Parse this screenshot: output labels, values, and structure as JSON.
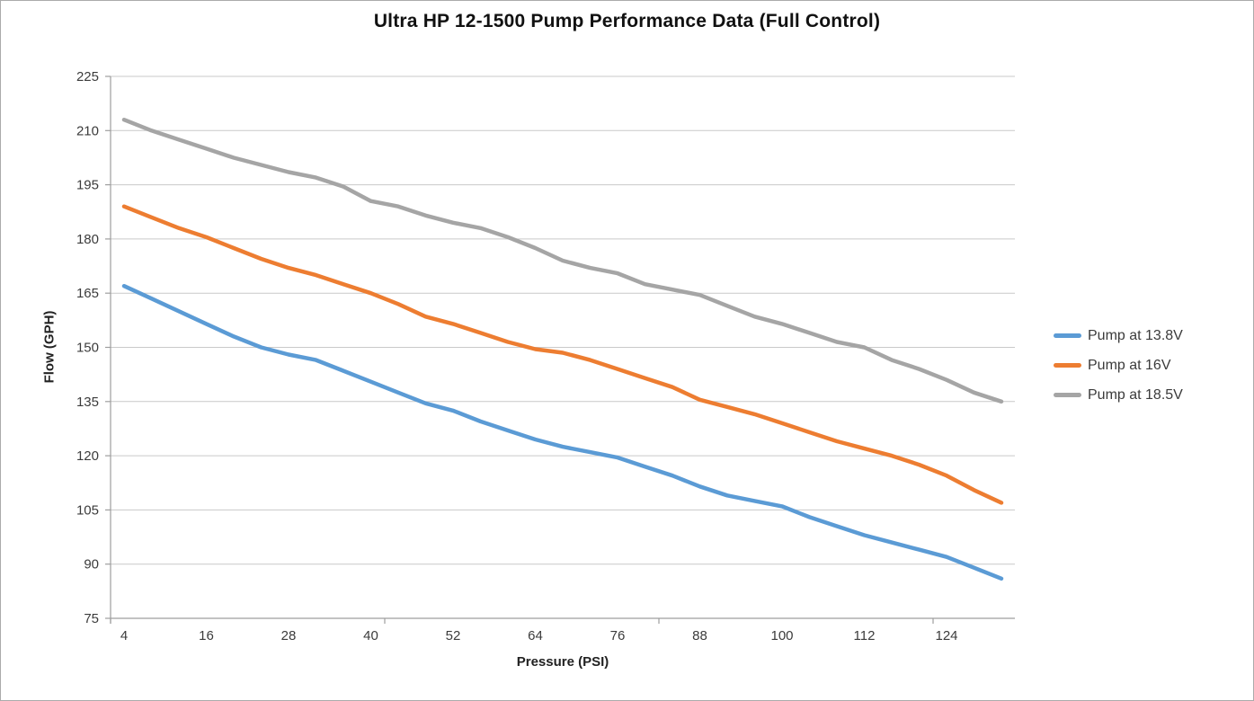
{
  "window": {
    "background": "#FFFFFF",
    "border_color": "#ABABAB"
  },
  "chart_data": {
    "type": "line",
    "title": "Ultra HP 12-1500 Pump Performance Data (Full Control)",
    "xlabel": "Pressure (PSI)",
    "ylabel": "Flow (GPH)",
    "x": [
      4,
      8,
      12,
      16,
      20,
      24,
      28,
      32,
      36,
      40,
      44,
      48,
      52,
      56,
      60,
      64,
      68,
      72,
      76,
      80,
      84,
      88,
      92,
      96,
      100,
      104,
      108,
      112,
      116,
      120,
      124,
      128,
      132
    ],
    "x_tick_labels": [
      "4",
      "16",
      "28",
      "40",
      "52",
      "64",
      "76",
      "88",
      "100",
      "112",
      "124"
    ],
    "y_ticks": [
      "225",
      "210",
      "195",
      "180",
      "165",
      "150",
      "135",
      "120",
      "105",
      "90",
      "75"
    ],
    "ylim": [
      75,
      225
    ],
    "xlim": [
      4,
      132
    ],
    "grid": "horizontal",
    "legend_position": "right",
    "series": [
      {
        "name": "Pump at 13.8V",
        "color": "#5B9BD5",
        "values": [
          167,
          163.5,
          160,
          156.5,
          153,
          150,
          148,
          146.5,
          143.5,
          140.5,
          137.5,
          134.5,
          132.5,
          129.5,
          127,
          124.5,
          122.5,
          121,
          119.5,
          117,
          114.5,
          111.5,
          109,
          107.5,
          106,
          103,
          100.5,
          98,
          96,
          94,
          92,
          89,
          86
        ]
      },
      {
        "name": "Pump at 16V",
        "color": "#ED7D31",
        "values": [
          189,
          186,
          183,
          180.5,
          177.5,
          174.5,
          172,
          170,
          167.5,
          165,
          162,
          158.5,
          156.5,
          154,
          151.5,
          149.5,
          148.5,
          146.5,
          144,
          141.5,
          139,
          135.5,
          133.5,
          131.5,
          129,
          126.5,
          124,
          122,
          120,
          117.5,
          114.5,
          110.5,
          107
        ]
      },
      {
        "name": "Pump at 18.5V",
        "color": "#A5A5A5",
        "values": [
          213,
          210,
          207.5,
          205,
          202.5,
          200.5,
          198.5,
          197,
          194.5,
          190.5,
          189,
          186.5,
          184.5,
          183,
          180.5,
          177.5,
          174,
          172,
          170.5,
          167.5,
          166,
          164.5,
          161.5,
          158.5,
          156.5,
          154,
          151.5,
          150,
          146.5,
          144,
          141,
          137.5,
          135
        ]
      }
    ],
    "gridline_color": "#C9C9C9",
    "axis_color": "#9E9E9E",
    "tick_label_color": "#3B3B3B"
  }
}
